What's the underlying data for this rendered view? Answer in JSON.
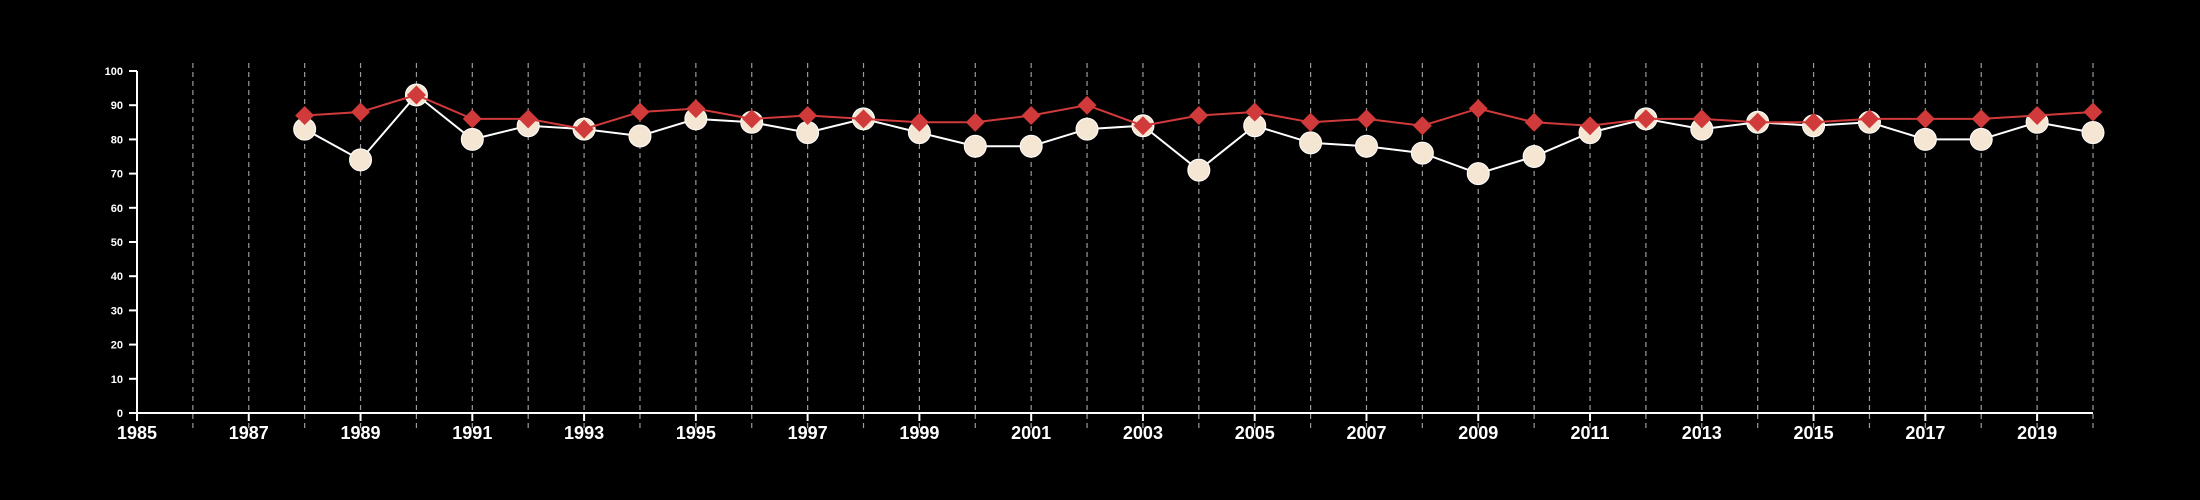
{
  "chart_data": {
    "type": "line",
    "title": "",
    "xlabel": "",
    "ylabel": "",
    "xlim": [
      1985,
      2020
    ],
    "ylim": [
      0,
      100
    ],
    "x_ticks": [
      1985,
      1987,
      1989,
      1991,
      1993,
      1995,
      1997,
      1999,
      2001,
      2003,
      2005,
      2007,
      2009,
      2011,
      2013,
      2015,
      2017,
      2019
    ],
    "y_ticks": [
      0,
      10,
      20,
      30,
      40,
      50,
      60,
      70,
      80,
      90,
      100
    ],
    "vertical_grid": "dashed, every year",
    "legend": "none",
    "x": [
      1988,
      1989,
      1990,
      1991,
      1992,
      1993,
      1994,
      1995,
      1996,
      1997,
      1998,
      1999,
      2000,
      2001,
      2002,
      2003,
      2004,
      2005,
      2006,
      2007,
      2008,
      2009,
      2010,
      2011,
      2012,
      2013,
      2014,
      2015,
      2016,
      2017,
      2018,
      2019,
      2020
    ],
    "series": [
      {
        "marker": "diamond",
        "color": "#d03a3a",
        "values": [
          87,
          88,
          93,
          86,
          86,
          83,
          88,
          89,
          86,
          87,
          86,
          85,
          85,
          87,
          90,
          84,
          87,
          88,
          85,
          86,
          84,
          89,
          85,
          84,
          86,
          86,
          85,
          85,
          86,
          86,
          86,
          87,
          88
        ]
      },
      {
        "marker": "circle",
        "color": "#f5e6d3",
        "line_color": "#ffffff",
        "values": [
          83,
          74,
          93,
          80,
          84,
          83,
          81,
          86,
          85,
          82,
          86,
          82,
          78,
          78,
          83,
          84,
          71,
          84,
          79,
          78,
          76,
          70,
          75,
          82,
          86,
          83,
          85,
          84,
          85,
          80,
          80,
          85,
          82
        ]
      }
    ]
  }
}
